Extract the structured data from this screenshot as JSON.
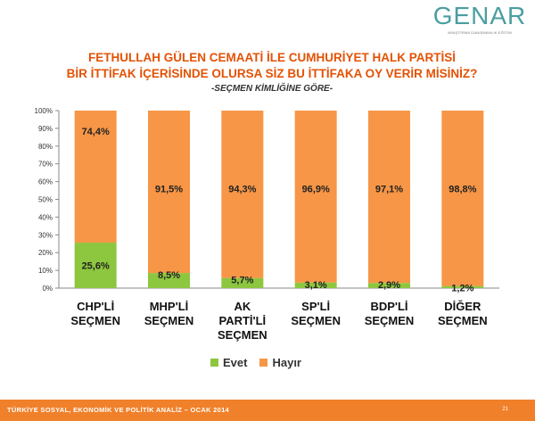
{
  "logo": {
    "name": "GENAR",
    "tagline": "ARAŞTIRMA DANIŞMANLIK EĞİTİM"
  },
  "colors": {
    "evet": "#8dc63f",
    "hayir": "#f79646",
    "title": "#e35205",
    "footer": "#f0802a",
    "logo": "#4a9ea0"
  },
  "chart_data": {
    "type": "bar",
    "stacked": true,
    "title_line1": "FETHULLAH GÜLEN CEMAATİ İLE CUMHURİYET HALK PARTİSİ",
    "title_line2": "BİR İTTİFAK İÇERİSİNDE OLURSA SİZ BU İTTİFAKA OY VERİR MİSİNİZ?",
    "subtitle": "-SEÇMEN KİMLİĞİNE GÖRE-",
    "categories": [
      [
        "CHP'Lİ",
        "SEÇMEN"
      ],
      [
        "MHP'Lİ",
        "SEÇMEN"
      ],
      [
        "AK",
        "PARTİ'Lİ",
        "SEÇMEN"
      ],
      [
        "SP'Lİ",
        "SEÇMEN"
      ],
      [
        "BDP'Lİ",
        "SEÇMEN"
      ],
      [
        "DİĞER",
        "SEÇMEN"
      ]
    ],
    "series": [
      {
        "name": "Evet",
        "values": [
          25.6,
          8.5,
          5.7,
          3.1,
          2.9,
          1.2
        ],
        "labels": [
          "25,6%",
          "8,5%",
          "5,7%",
          "3,1%",
          "2,9%",
          "1,2%"
        ]
      },
      {
        "name": "Hayır",
        "values": [
          74.4,
          91.5,
          94.3,
          96.9,
          97.1,
          98.8
        ],
        "labels": [
          "74,4%",
          "91,5%",
          "94,3%",
          "96,9%",
          "97,1%",
          "98,8%"
        ]
      }
    ],
    "y_ticks": [
      "0%",
      "10%",
      "20%",
      "30%",
      "40%",
      "50%",
      "60%",
      "70%",
      "80%",
      "90%",
      "100%"
    ],
    "ylim": [
      0,
      100
    ],
    "legend_position": "bottom"
  },
  "footer": {
    "text": "TÜRKİYE SOSYAL, EKONOMİK VE POLİTİK ANALİZ – OCAK 2014",
    "page": "21"
  }
}
